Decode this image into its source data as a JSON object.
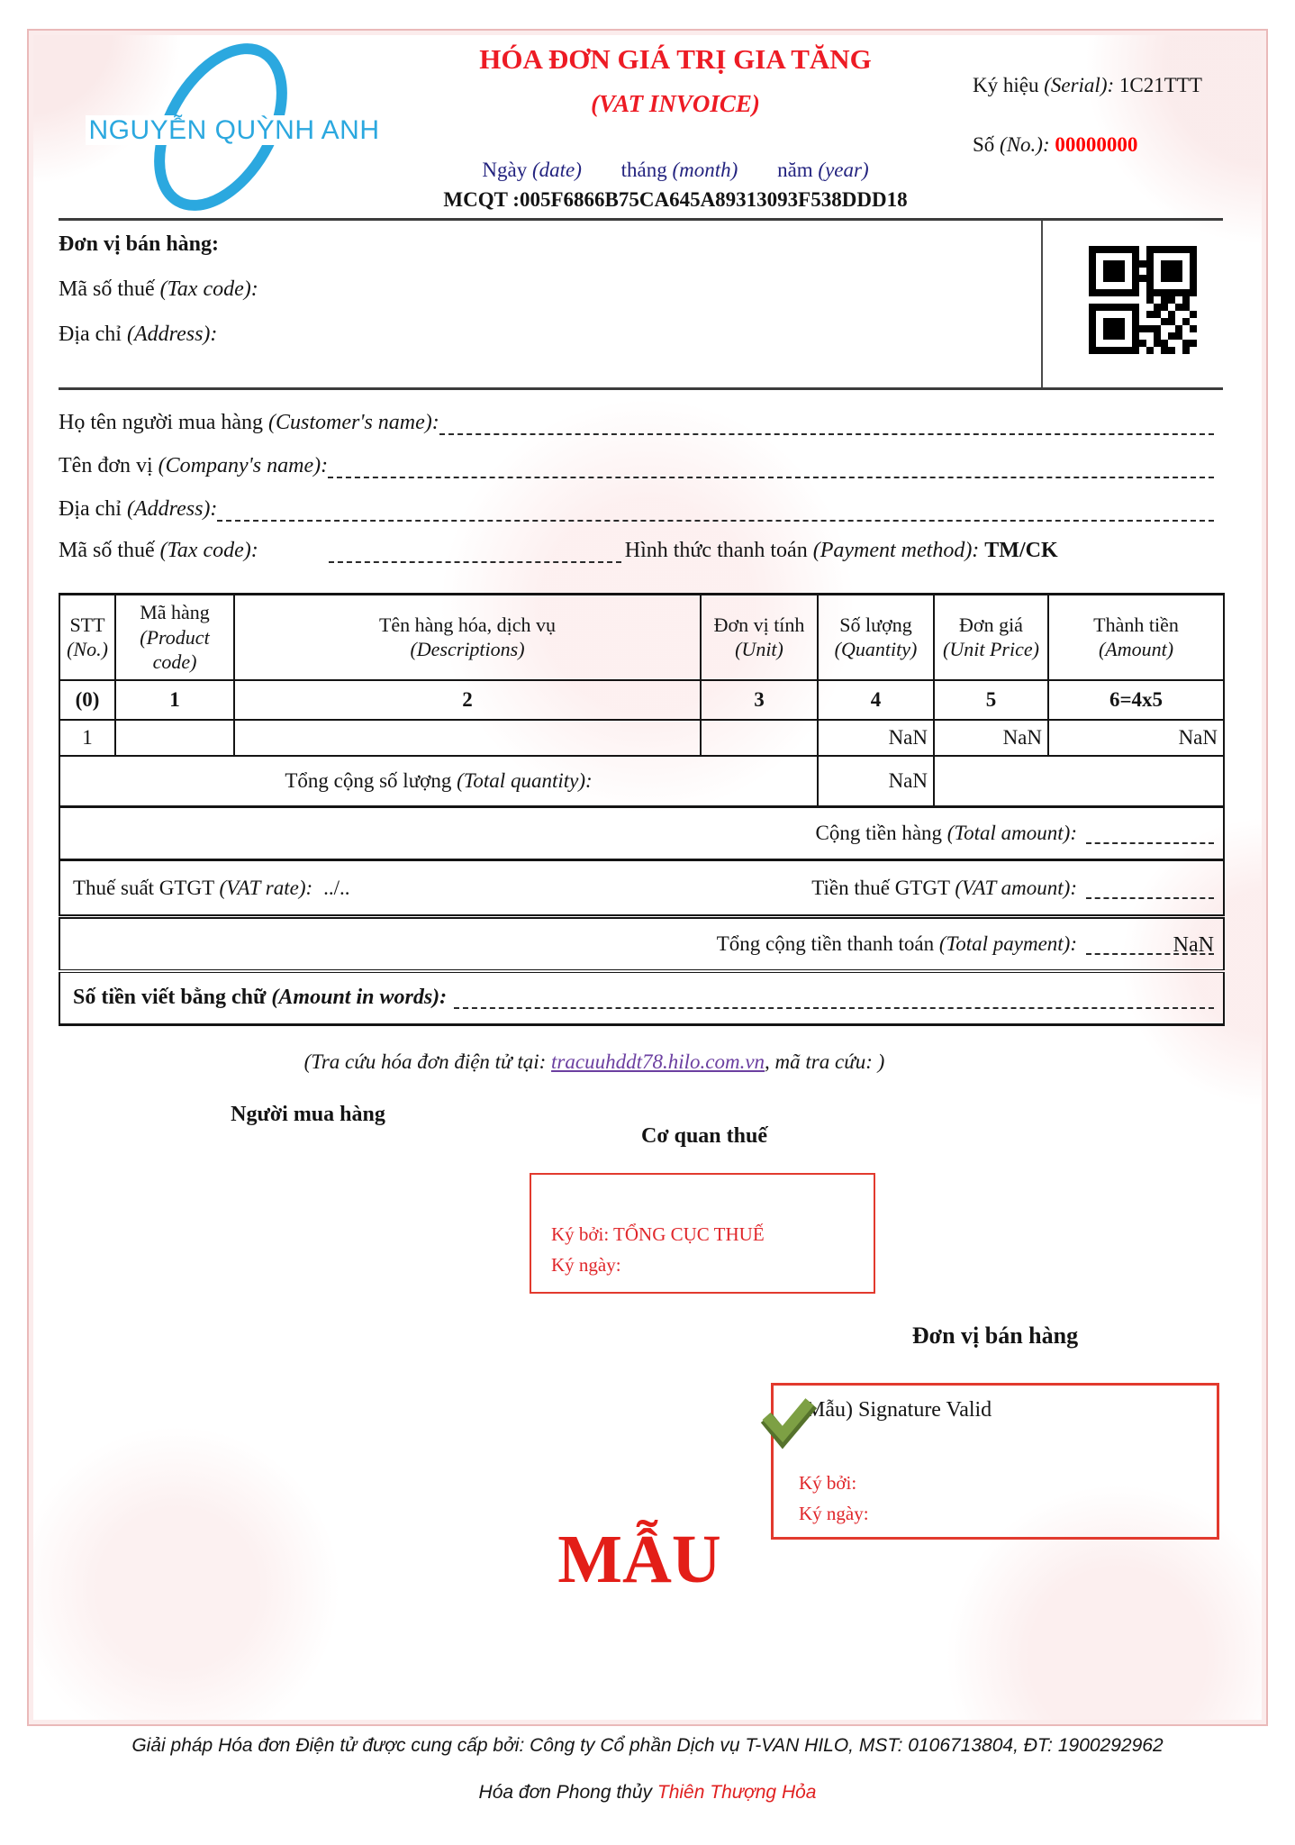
{
  "colors": {
    "title_red": "#ed1b24",
    "number_red": "#ff0000",
    "logo_blue": "#2ba8df",
    "date_navy": "#23237f",
    "link_purple": "#6b3fa0",
    "check_green": "#7da044",
    "sig_box_red": "#e23a2e",
    "watermark_red": "#e31e18",
    "frame_pink": "#eab9b9"
  },
  "header": {
    "logo": "NGUYỄN QUỲNH ANH",
    "title": "HÓA ĐƠN GIÁ TRỊ GIA TĂNG",
    "subtitle": "(VAT INVOICE)",
    "date": {
      "d_vi": "Ngày ",
      "d_en": "(date)",
      "m_vi": "tháng ",
      "m_en": "(month)",
      "y_vi": "năm ",
      "y_en": "(year)"
    },
    "mcqt": "MCQT :005F6866B75CA645A89313093F538DDD18",
    "serial": {
      "vi": "Ký hiệu ",
      "en": "(Serial): ",
      "value": "1C21TTT"
    },
    "number": {
      "vi": "Số ",
      "en": "(No.): ",
      "value": "00000000"
    }
  },
  "seller": {
    "title": "Đơn vị bán hàng:",
    "tax": {
      "vi": "Mã số thuế ",
      "en": "(Tax code):"
    },
    "address": {
      "vi": "Địa chỉ ",
      "en": "(Address):"
    }
  },
  "buyer": {
    "customer": {
      "vi": "Họ tên người mua hàng ",
      "en": "(Customer's name):"
    },
    "company": {
      "vi": "Tên đơn vị ",
      "en": "(Company's name):"
    },
    "address": {
      "vi": "Địa chỉ ",
      "en": "(Address):"
    },
    "tax": {
      "vi": "Mã số thuế ",
      "en": "(Tax code):"
    },
    "payment": {
      "vi": "Hình thức thanh toán ",
      "en": "(Payment method): ",
      "value": "TM/CK"
    }
  },
  "table": {
    "headers": [
      {
        "vi": "STT",
        "en": "(No.)"
      },
      {
        "vi": "Mã hàng",
        "en": "(Product code)"
      },
      {
        "vi": "Tên hàng hóa, dịch vụ",
        "en": "(Descriptions)"
      },
      {
        "vi": "Đơn vị tính",
        "en": "(Unit)"
      },
      {
        "vi": "Số lượng",
        "en": "(Quantity)"
      },
      {
        "vi": "Đơn giá",
        "en": "(Unit Price)"
      },
      {
        "vi": "Thành tiền",
        "en": "(Amount)"
      }
    ],
    "index_row": [
      "(0)",
      "1",
      "2",
      "3",
      "4",
      "5",
      "6=4x5"
    ],
    "rows": [
      {
        "stt": "1",
        "code": "",
        "desc": "",
        "unit": "",
        "qty": "NaN",
        "price": "NaN",
        "amount": "NaN"
      }
    ],
    "total_quantity": {
      "vi": "Tổng cộng số lượng ",
      "en": "(Total quantity):",
      "value": "NaN"
    },
    "total_amount": {
      "vi": "Cộng tiền hàng ",
      "en": "(Total amount):",
      "value": ""
    },
    "vat_rate": {
      "vi": "Thuế suất GTGT ",
      "en": "(VAT rate):",
      "value": "../.."
    },
    "vat_amount": {
      "vi": "Tiền thuế GTGT ",
      "en": "(VAT amount):",
      "value": ""
    },
    "total_payment": {
      "vi": "Tổng cộng tiền thanh toán ",
      "en": "(Total payment):",
      "value": "NaN"
    },
    "amount_words": {
      "vi": "Số tiền viết bằng chữ ",
      "en": "(Amount in words):"
    }
  },
  "lookup": {
    "prefix": "(Tra cứu hóa đơn điện tử tại: ",
    "link": "tracuuhddt78.hilo.com.vn",
    "suffix": ", mã tra cứu: )"
  },
  "signatures": {
    "buyer_title": "Người mua hàng",
    "tax_title": "Cơ quan thuế",
    "tax_box": {
      "signed_by": "Ký bởi: TỔNG CỤC THUẾ",
      "signed_date": "Ký ngày:"
    },
    "seller_title": "Đơn vị bán hàng",
    "seller_box": {
      "valid": "(Mẫu) Signature Valid",
      "signed_by": "Ký bởi:",
      "signed_date": "Ký ngày:"
    }
  },
  "watermark": "MẪU",
  "footer": {
    "line1": "Giải pháp Hóa đơn Điện tử được cung cấp bởi: Công ty Cổ phần Dịch vụ T-VAN HILO, MST: 0106713804, ĐT: 1900292962",
    "line2_black": "Hóa đơn Phong thủy ",
    "line2_red": "Thiên Thượng Hỏa"
  }
}
